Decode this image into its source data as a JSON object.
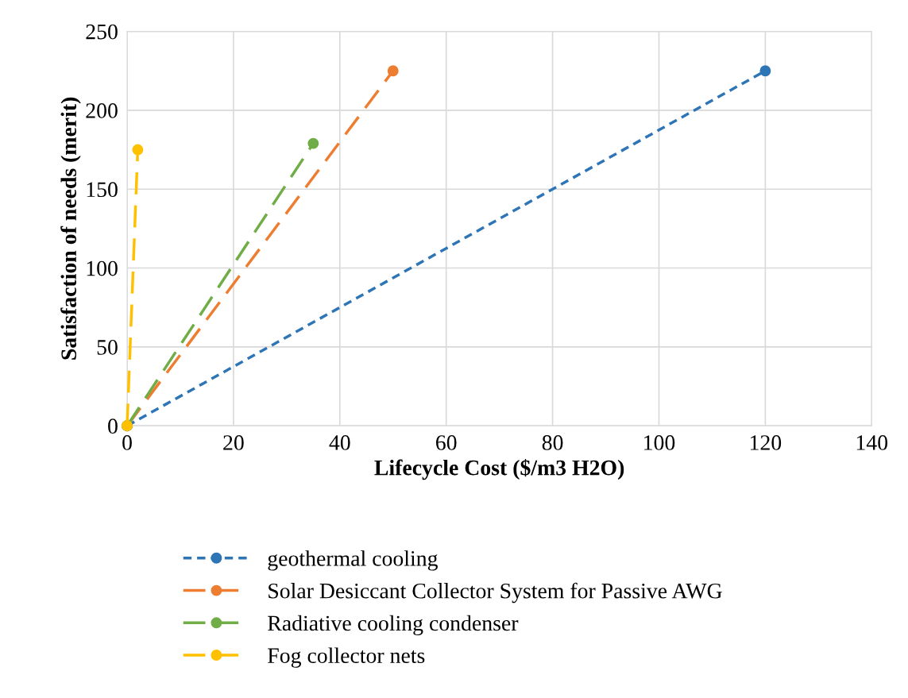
{
  "chart_data": {
    "type": "line",
    "xlabel": "Lifecycle Cost ($/m3 H2O)",
    "ylabel": "Satisfaction of needs (merit)",
    "xlim": [
      0,
      140
    ],
    "xticks": [
      0,
      20,
      40,
      60,
      80,
      100,
      120,
      140
    ],
    "ylim": [
      0,
      250
    ],
    "yticks": [
      0,
      50,
      100,
      150,
      200,
      250
    ],
    "grid": true,
    "legend": "bottom",
    "marker": "circle",
    "series": [
      {
        "name": "geothermal cooling",
        "color": "#2e75b6",
        "x": [
          0,
          120
        ],
        "values": [
          0,
          225
        ],
        "line_style": "dotted"
      },
      {
        "name": "Solar Desiccant Collector System for Passive AWG",
        "color": "#ed7d31",
        "x": [
          0,
          50
        ],
        "values": [
          0,
          225
        ],
        "line_style": "dashed"
      },
      {
        "name": "Radiative cooling condenser",
        "color": "#70ad47",
        "x": [
          0,
          35
        ],
        "values": [
          0,
          179
        ],
        "line_style": "dashed"
      },
      {
        "name": "Fog collector nets",
        "color": "#ffc000",
        "x": [
          0,
          2
        ],
        "values": [
          0,
          175
        ],
        "line_style": "dashed"
      }
    ]
  }
}
